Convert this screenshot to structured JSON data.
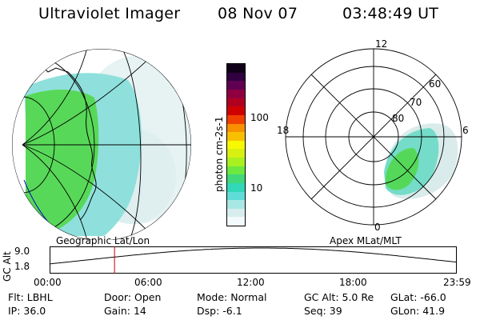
{
  "header": {
    "instrument": "Ultraviolet Imager",
    "date": "08 Nov 07",
    "time": "03:48:49 UT"
  },
  "colorbar": {
    "unit_label": "photon cm-2s-1",
    "ticks": [
      {
        "label": "100",
        "value": 100
      },
      {
        "label": "10",
        "value": 10
      }
    ],
    "colors": [
      "#f4fafb",
      "#d8eeee",
      "#a8e8e4",
      "#60dcd8",
      "#30d8b8",
      "#40d878",
      "#6ce840",
      "#a8f020",
      "#d8f010",
      "#f8f800",
      "#f8c000",
      "#f89000",
      "#f04000",
      "#d00000",
      "#b00020",
      "#900040",
      "#600050",
      "#300040",
      "#100018"
    ]
  },
  "panels": {
    "left_label": "Geographic Lat/Lon",
    "right_label": "Apex MLat/MLT"
  },
  "polar": {
    "mlt_labels": [
      {
        "label": "12",
        "pos": "top"
      },
      {
        "label": "6",
        "pos": "right"
      },
      {
        "label": "0",
        "pos": "bottom"
      },
      {
        "label": "18",
        "pos": "left"
      }
    ],
    "lat_labels": [
      "60",
      "70",
      "80"
    ]
  },
  "altitude_plot": {
    "ylabel": "GC Alt",
    "yticks": [
      "9.0",
      "1.8"
    ],
    "xticks": [
      "00:00",
      "06:00",
      "12:00",
      "18:00",
      "23:59"
    ],
    "current_time_hours": 3.81
  },
  "info": {
    "row1": [
      {
        "k": "Flt:",
        "v": "LBHL"
      },
      {
        "k": "Door:",
        "v": "Open"
      },
      {
        "k": "Mode:",
        "v": "Normal"
      },
      {
        "k": "GC Alt:",
        "v": "5.0 Re"
      },
      {
        "k": "GLat:",
        "v": "-66.0"
      }
    ],
    "row2": [
      {
        "k": "IP:",
        "v": "36.0"
      },
      {
        "k": "Gain:",
        "v": "14"
      },
      {
        "k": "Dsp:",
        "v": "-6.1"
      },
      {
        "k": "Seq:",
        "v": "39"
      },
      {
        "k": "GLon:",
        "v": "41.9"
      }
    ]
  }
}
